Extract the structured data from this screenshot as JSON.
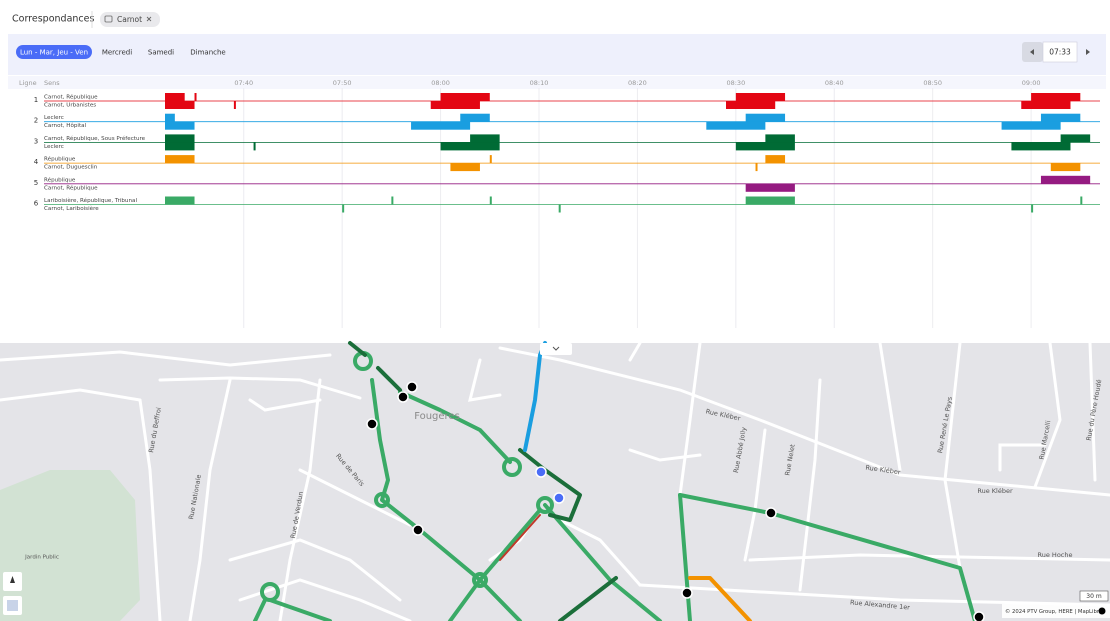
{
  "header": {
    "title": "Correspondances",
    "stop_chip": "Carnot"
  },
  "tabs": [
    "Lun - Mar, Jeu - Ven",
    "Mercredi",
    "Samedi",
    "Dimanche"
  ],
  "active_tab": 0,
  "time_input": "07:33",
  "timeline": {
    "column_headers": {
      "line": "Ligne",
      "direction": "Sens"
    },
    "range": [
      "07:32",
      "09:07"
    ],
    "ticks": [
      "07:40",
      "07:50",
      "08:00",
      "08:10",
      "08:20",
      "08:30",
      "08:40",
      "08:50",
      "09:00"
    ],
    "lines": [
      {
        "number": "1",
        "color": "#e30613",
        "directions": [
          {
            "name": "Carnot, République",
            "bars": [
              [
                "07:32",
                "07:34"
              ],
              [
                "07:35",
                "07:35"
              ],
              [
                "08:00",
                "08:05"
              ],
              [
                "08:30",
                "08:35"
              ],
              [
                "09:00",
                "09:05"
              ]
            ]
          },
          {
            "name": "Carnot, Urbanistes",
            "bars": [
              [
                "07:32",
                "07:35"
              ],
              [
                "07:39",
                "07:39"
              ],
              [
                "07:59",
                "08:04"
              ],
              [
                "08:29",
                "08:34"
              ],
              [
                "08:59",
                "09:04"
              ]
            ]
          }
        ]
      },
      {
        "number": "2",
        "color": "#1a9ee0",
        "directions": [
          {
            "name": "Leclerc",
            "bars": [
              [
                "07:32",
                "07:33"
              ],
              [
                "08:02",
                "08:05"
              ],
              [
                "08:31",
                "08:35"
              ],
              [
                "09:01",
                "09:05"
              ]
            ]
          },
          {
            "name": "Carnot, Hôpital",
            "bars": [
              [
                "07:32",
                "07:35"
              ],
              [
                "07:57",
                "08:03"
              ],
              [
                "08:27",
                "08:33"
              ],
              [
                "08:57",
                "09:03"
              ]
            ]
          }
        ]
      },
      {
        "number": "3",
        "color": "#006b35",
        "directions": [
          {
            "name": "Carnot, République, Sous Préfecture",
            "bars": [
              [
                "07:32",
                "07:35"
              ],
              [
                "08:03",
                "08:06"
              ],
              [
                "08:33",
                "08:36"
              ],
              [
                "09:03",
                "09:06"
              ]
            ]
          },
          {
            "name": "Leclerc",
            "bars": [
              [
                "07:32",
                "07:35"
              ],
              [
                "07:41",
                "07:41"
              ],
              [
                "08:00",
                "08:06"
              ],
              [
                "08:30",
                "08:36"
              ],
              [
                "08:58",
                "09:04"
              ]
            ]
          }
        ]
      },
      {
        "number": "4",
        "color": "#f39200",
        "directions": [
          {
            "name": "République",
            "bars": [
              [
                "07:32",
                "07:35"
              ],
              [
                "08:05",
                "08:05"
              ],
              [
                "08:33",
                "08:35"
              ]
            ]
          },
          {
            "name": "Carnot, Duguesclin",
            "bars": [
              [
                "08:01",
                "08:04"
              ],
              [
                "08:32",
                "08:32"
              ],
              [
                "09:02",
                "09:05"
              ]
            ]
          }
        ]
      },
      {
        "number": "5",
        "color": "#951b81",
        "directions": [
          {
            "name": "République",
            "bars": [
              [
                "09:01",
                "09:06"
              ]
            ]
          },
          {
            "name": "Carnot, République",
            "bars": [
              [
                "08:31",
                "08:36"
              ]
            ]
          }
        ]
      },
      {
        "number": "6",
        "color": "#3aaa66",
        "directions": [
          {
            "name": "Lariboisière, République, Tribunal",
            "bars": [
              [
                "07:32",
                "07:35"
              ],
              [
                "07:55",
                "07:55"
              ],
              [
                "08:05",
                "08:05"
              ],
              [
                "08:31",
                "08:36"
              ],
              [
                "09:05",
                "09:05"
              ]
            ]
          },
          {
            "name": "Carnot, Lariboisière",
            "bars": [
              [
                "07:50",
                "07:50"
              ],
              [
                "08:12",
                "08:12"
              ],
              [
                "09:00",
                "09:00"
              ]
            ]
          }
        ]
      }
    ]
  },
  "map": {
    "labels": [
      "Fougères",
      "Rue Kléber",
      "Rue Kléber",
      "Rue Kléber",
      "Rue Hoche",
      "Rue Alexandre 1er",
      "Rue de Paris",
      "Rue de Verdun",
      "Rue Nationale",
      "Rue du Beffroi",
      "Jardin Public",
      "Rue Abbé Jolly",
      "Rue Nelet",
      "Rue René Le Pays",
      "Rue Marcelli",
      "Rue du Père Houdé"
    ],
    "scale": "30 m",
    "attribution": "© 2024 PTV Group, HERE | MapLibre"
  }
}
